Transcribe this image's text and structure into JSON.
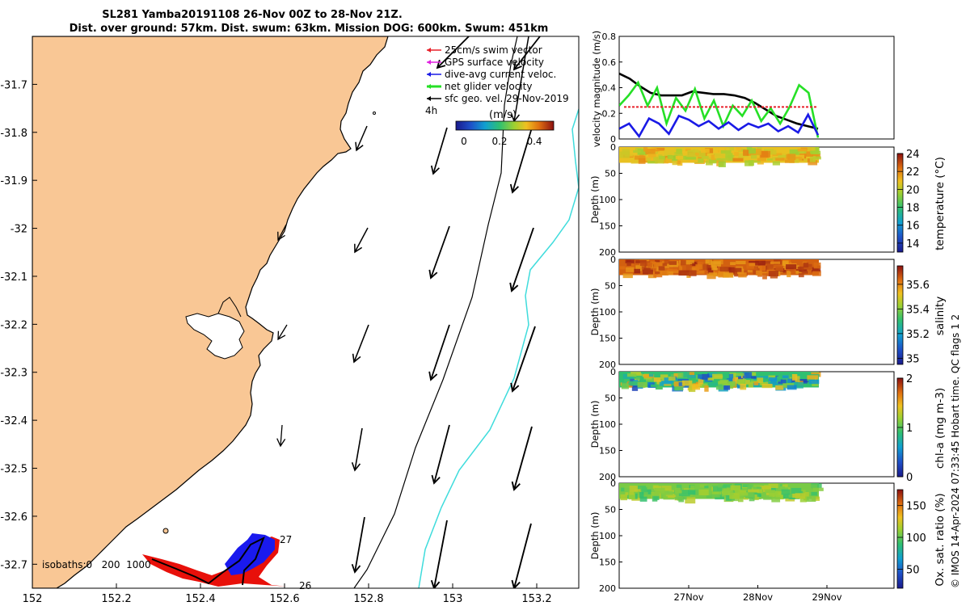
{
  "title": {
    "line1": "SL281 Yamba20191108 26-Nov 00Z to 28-Nov 21Z.",
    "line2": "Dist. over ground: 57km. Dist. swum: 63km. Mission DOG: 600km. Swum: 451km"
  },
  "copyright": "© IMOS 14-Apr-2024 07:33:45 Hobart time. QC flags 1  2",
  "colors": {
    "land": "#f9c795",
    "cyan_line": "#3fdcdc",
    "swim_vector": "#e8202a",
    "gps_velocity": "#e020e0",
    "dive_avg": "#1a1ae6",
    "net_glider": "#26e026",
    "sfc_geo": "#000000",
    "track_red": "#e8100a",
    "track_blue": "#1a1aee"
  },
  "chart_data": [
    {
      "type": "map",
      "x_ticks": [
        "152",
        "152.2",
        "152.4",
        "152.6",
        "152.8",
        "153",
        "153.2"
      ],
      "y_ticks": [
        "-31.7",
        "-31.8",
        "-31.9",
        "-32",
        "-32.1",
        "-32.2",
        "-32.3",
        "-32.4",
        "-32.5",
        "-32.6",
        "-32.7"
      ],
      "xlim": [
        152.0,
        153.3
      ],
      "ylim": [
        -32.75,
        -31.6
      ],
      "legend": [
        {
          "label": "25cm/s swim vector",
          "color": "#e8202a"
        },
        {
          "label": "GPS surface velocity",
          "color": "#e020e0"
        },
        {
          "label": "dive-avg current veloc.",
          "color": "#1a1ae6"
        },
        {
          "label": "net glider velocity",
          "color": "#26e026"
        },
        {
          "label": "sfc geo. vel. 29-Nov-2019",
          "color": "#000000"
        }
      ],
      "legend_position": "top-right",
      "interval_label": "4h",
      "colorbar_label": "(m/s)",
      "colorbar_ticks": [
        "0",
        "0.2",
        "0.4"
      ],
      "isobaths_label": "isobaths:0   200  1000",
      "track_labels": [
        "27",
        "26"
      ]
    },
    {
      "type": "line",
      "ylabel": "velocity magnitude (m/s)",
      "y_ticks": [
        "0",
        "0.2",
        "0.4",
        "0.6",
        "0.8"
      ],
      "ylim": [
        0,
        0.8
      ],
      "grid": false,
      "series": [
        {
          "color": "#000000",
          "values": [
            0.51,
            0.47,
            0.41,
            0.36,
            0.34,
            0.34,
            0.34,
            0.37,
            0.36,
            0.35,
            0.35,
            0.34,
            0.32,
            0.28,
            0.23,
            0.18,
            0.15,
            0.12,
            0.1,
            0.08
          ]
        },
        {
          "color": "#26e026",
          "values": [
            0.26,
            0.34,
            0.44,
            0.26,
            0.4,
            0.12,
            0.32,
            0.22,
            0.39,
            0.16,
            0.3,
            0.1,
            0.26,
            0.18,
            0.3,
            0.14,
            0.24,
            0.12,
            0.25,
            0.42,
            0.36,
            0.01
          ]
        },
        {
          "color": "#1a1ae6",
          "values": [
            0.08,
            0.12,
            0.02,
            0.16,
            0.12,
            0.04,
            0.18,
            0.15,
            0.1,
            0.14,
            0.08,
            0.13,
            0.07,
            0.12,
            0.09,
            0.12,
            0.06,
            0.1,
            0.05,
            0.19,
            0.03
          ]
        },
        {
          "color": "#e8202a",
          "dashed": true,
          "values": [
            0.25,
            0.25
          ]
        }
      ]
    },
    {
      "type": "heatmap",
      "ylabel": "Depth (m)",
      "y_ticks": [
        "0",
        "50",
        "100",
        "150",
        "200"
      ],
      "colorbar_label": "temperature (°C)",
      "colorbar_ticks": [
        "14",
        "16",
        "18",
        "20",
        "22",
        "24"
      ],
      "clim": [
        13,
        24
      ],
      "dominant_value": 20.8
    },
    {
      "type": "heatmap",
      "ylabel": "Depth (m)",
      "y_ticks": [
        "0",
        "50",
        "100",
        "150",
        "200"
      ],
      "colorbar_label": "salinity",
      "colorbar_ticks": [
        "35",
        "35.2",
        "35.4",
        "35.6"
      ],
      "clim": [
        34.95,
        35.75
      ],
      "dominant_value": 35.65
    },
    {
      "type": "heatmap",
      "ylabel": "Depth (m)",
      "y_ticks": [
        "0",
        "50",
        "100",
        "150",
        "200"
      ],
      "colorbar_label": "chl-a (mg m-3)",
      "colorbar_ticks": [
        "0",
        "1",
        "2"
      ],
      "clim": [
        0,
        2
      ],
      "dominant_value": 0.9
    },
    {
      "type": "heatmap",
      "ylabel": "Depth (m)",
      "y_ticks": [
        "0",
        "50",
        "100",
        "150",
        "200"
      ],
      "colorbar_label": "Ox. sat. ratio (%)",
      "colorbar_ticks": [
        "50",
        "100",
        "150"
      ],
      "clim": [
        20,
        175
      ],
      "dominant_value": 105,
      "x_ticks": [
        "27Nov",
        "28Nov",
        "29Nov"
      ]
    }
  ]
}
